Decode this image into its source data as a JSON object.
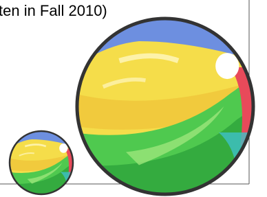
{
  "caption": {
    "text": "ten in Fall 2010)"
  }
}
